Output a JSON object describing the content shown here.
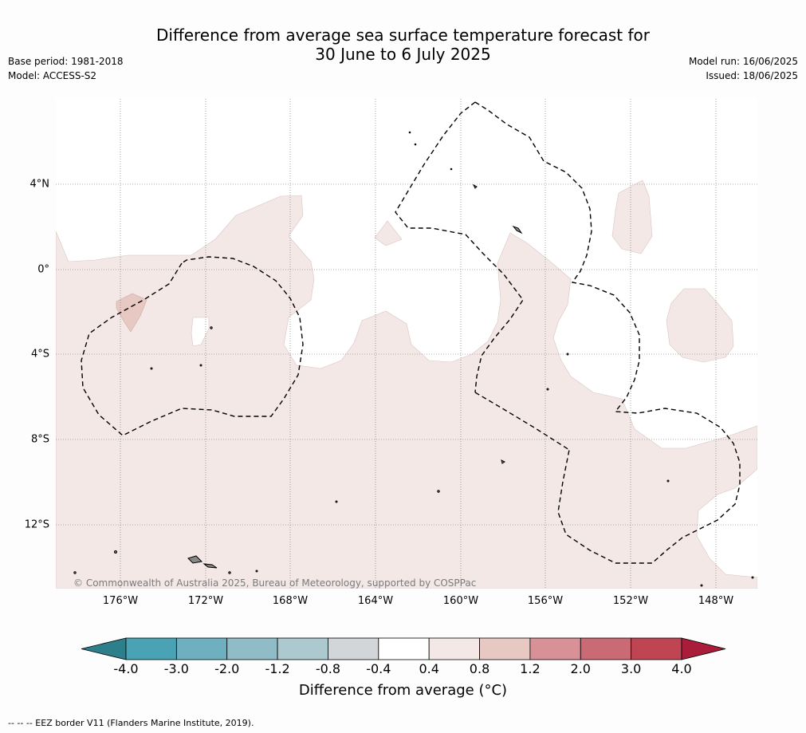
{
  "title_line1": "Difference from average sea surface temperature forecast for",
  "title_line2": "30 June to 6 July 2025",
  "base_period": "Base period: 1981-2018",
  "model": "Model: ACCESS-S2",
  "model_run": "Model run: 16/06/2025",
  "issued": "Issued: 18/06/2025",
  "credit": "© Commonwealth of Australia 2025, Bureau of Meteorology, supported by COSPPac",
  "footnote": "-- -- -- EEZ border V11 (Flanders Marine Institute, 2019).",
  "map": {
    "lon_labels": [
      "176°W",
      "172°W",
      "168°W",
      "164°W",
      "160°W",
      "156°W",
      "152°W",
      "148°W"
    ],
    "lat_labels": [
      "4°N",
      "0°",
      "4°S",
      "8°S",
      "12°S"
    ],
    "background_color": "#ffffff",
    "anomaly_fill_0_4_to_0_8": "#f4e8e7",
    "anomaly_fill_0_8_to_1_2": "#e8c8c3",
    "land_color": "#888888"
  },
  "colorbar": {
    "title": "Difference from average (°C)",
    "ticks": [
      "-4.0",
      "-3.0",
      "-2.0",
      "-1.2",
      "-0.8",
      "-0.4",
      "0.4",
      "0.8",
      "1.2",
      "2.0",
      "3.0",
      "4.0"
    ],
    "colors": [
      "#4aa3b5",
      "#6eb0bf",
      "#8fbcc7",
      "#abc9cf",
      "#d3d6d8",
      "#ffffff",
      "#f4e8e7",
      "#e8c8c3",
      "#d99198",
      "#ca6a74",
      "#bf4553"
    ],
    "under_color": "#2e7f8c",
    "over_color": "#a91d3a"
  }
}
